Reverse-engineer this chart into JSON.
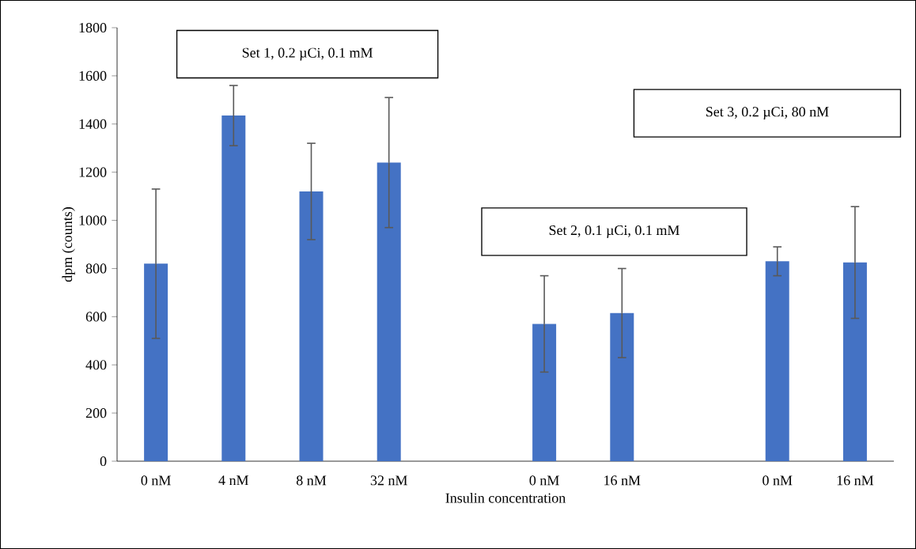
{
  "chart_data": {
    "type": "bar",
    "xlabel": "Insulin concentration",
    "ylabel": "dpm (counts)",
    "categories": [
      "0 nM",
      "4 nM",
      "8 nM",
      "32 nM",
      null,
      "0 nM",
      "16 nM",
      null,
      "0 nM",
      "16 nM"
    ],
    "values": [
      820,
      1435,
      1120,
      1240,
      null,
      570,
      615,
      null,
      830,
      825
    ],
    "errors": [
      310,
      125,
      200,
      270,
      null,
      200,
      185,
      null,
      60,
      232
    ],
    "color": "#4472c4",
    "ylim": [
      0,
      1800
    ],
    "yticks": [
      0,
      200,
      400,
      600,
      800,
      1000,
      1200,
      1400,
      1600,
      1800
    ],
    "grid": false,
    "annotations": [
      "Set 1, 0.2 µCi, 0.1 mM",
      "Set 2, 0.1 µCi, 0.1 mM",
      "Set 3, 0.2 µCi, 80 nM"
    ]
  }
}
